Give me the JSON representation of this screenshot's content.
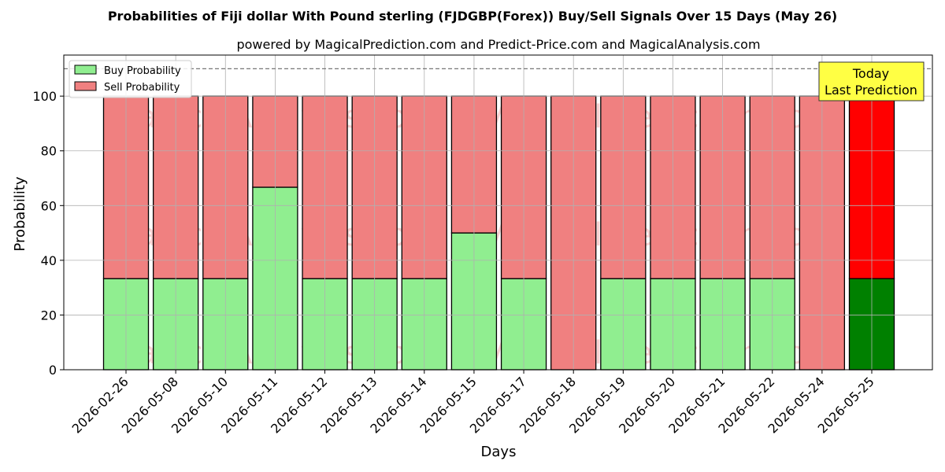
{
  "chart_data": {
    "type": "bar",
    "stacked": true,
    "title": "Probabilities of Fiji dollar With Pound sterling (FJDGBP(Forex)) Buy/Sell Signals Over 15 Days (May 26)",
    "subtitle": "powered by MagicalPrediction.com and Predict-Price.com and MagicalAnalysis.com",
    "xlabel": "Days",
    "ylabel": "Probability",
    "ylim": [
      0,
      115
    ],
    "yticks": [
      0,
      20,
      40,
      60,
      80,
      100
    ],
    "reference_line": 110,
    "grid": true,
    "legend_position": "top-left",
    "categories": [
      "2026-02-26",
      "2026-05-08",
      "2026-05-10",
      "2026-05-11",
      "2026-05-12",
      "2026-05-13",
      "2026-05-14",
      "2026-05-15",
      "2026-05-17",
      "2026-05-18",
      "2026-05-19",
      "2026-05-20",
      "2026-05-21",
      "2026-05-22",
      "2026-05-24",
      "2026-05-25"
    ],
    "series": [
      {
        "name": "Buy Probability",
        "color": "#90ee90",
        "highlight_color": "#008000",
        "values": [
          33.3,
          33.3,
          33.3,
          66.7,
          33.3,
          33.3,
          33.3,
          50,
          33.3,
          0,
          33.3,
          33.3,
          33.3,
          33.3,
          0,
          33.3
        ]
      },
      {
        "name": "Sell Probability",
        "color": "#f08080",
        "highlight_color": "#ff0000",
        "values": [
          66.7,
          66.7,
          66.7,
          33.3,
          66.7,
          66.7,
          66.7,
          50,
          66.7,
          100,
          66.7,
          66.7,
          66.7,
          66.7,
          100,
          66.7
        ]
      }
    ],
    "highlight_index": 15,
    "annotation": {
      "lines": [
        "Today",
        "Last Prediction"
      ],
      "color": "#ffff44"
    },
    "watermarks": [
      "MagicalAnalysis.com",
      "MagicalPrediction.com"
    ]
  }
}
